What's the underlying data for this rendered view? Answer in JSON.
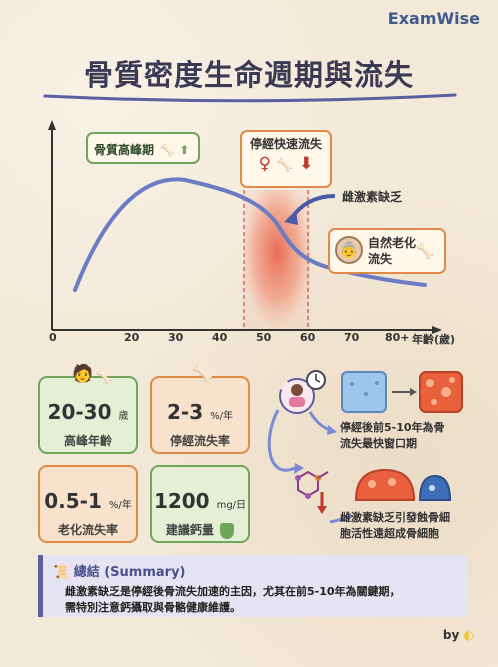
{
  "brand": "ExamWise",
  "title": "骨質密度生命週期與流失",
  "chart": {
    "peak_label": "骨質高峰期",
    "menopause_label": "停經快速流失",
    "estrogen_label": "雌激素缺乏",
    "aging_label": "自然老化\n流失",
    "ticks": [
      "0",
      "20",
      "30",
      "40",
      "50",
      "60",
      "70",
      "80+"
    ],
    "x_unit": "年齡(歲)"
  },
  "stats": [
    {
      "value": "20-30",
      "unit": "歲",
      "caption": "高峰年齡",
      "color": "#6fa65a",
      "bg": "#e4efd6"
    },
    {
      "value": "2-3",
      "unit": "%/年",
      "caption": "停經流失率",
      "color": "#e08a4a",
      "bg": "#f9e2cc"
    },
    {
      "value": "0.5-1",
      "unit": "%/年",
      "caption": "老化流失率",
      "color": "#e08a4a",
      "bg": "#f9e2cc"
    },
    {
      "value": "1200",
      "unit": "mg/日",
      "caption": "建議鈣量",
      "color": "#6fa65a",
      "bg": "#e4efd6"
    }
  ],
  "notes": {
    "window": "停經後前5-10年為骨\n流失最快窗口期",
    "mechanism": "雌激素缺乏引發蝕骨細\n胞活性遠超成骨細胞"
  },
  "summary": {
    "title": "總結 (Summary)",
    "text": "雌激素缺乏是停經後骨流失加速的主因，尤其在前5-10年為關鍵期，\n需特別注意鈣攝取與骨骼健康維護。"
  },
  "byline": "by",
  "colors": {
    "accent": "#3f5a8c",
    "green": "#6fa65a",
    "orange": "#e08a4a",
    "red": "#e8553f",
    "purple": "#5b5fa0"
  }
}
